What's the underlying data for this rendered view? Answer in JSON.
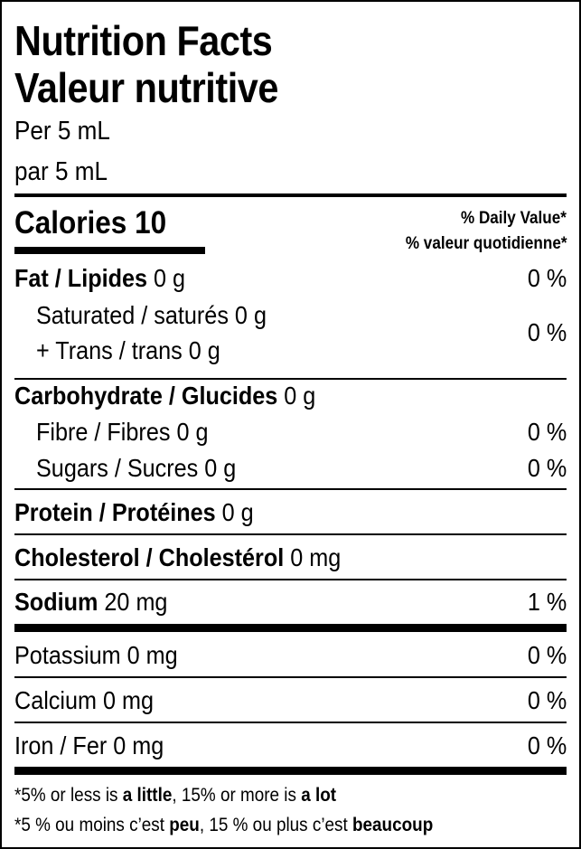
{
  "title_en": "Nutrition Facts",
  "title_fr": "Valeur nutritive",
  "serving_en": "Per 5 mL",
  "serving_fr": "par 5 mL",
  "calories": {
    "label": "Calories",
    "value": "10"
  },
  "dv_header_en": "% Daily Value*",
  "dv_header_fr": "% valeur quotidienne*",
  "rows": {
    "fat": {
      "label": "Fat / Lipides",
      "amount": "0 g",
      "dv": "0 %"
    },
    "saturated": {
      "label": "Saturated / saturés",
      "amount": "0 g"
    },
    "trans": {
      "label": "+ Trans / trans",
      "amount": "0 g"
    },
    "sat_trans_dv": "0 %",
    "carb": {
      "label": "Carbohydrate / Glucides",
      "amount": "0 g"
    },
    "fibre": {
      "label": "Fibre / Fibres",
      "amount": "0 g",
      "dv": "0 %"
    },
    "sugars": {
      "label": "Sugars / Sucres",
      "amount": "0 g",
      "dv": "0 %"
    },
    "protein": {
      "label": "Protein / Protéines",
      "amount": "0 g"
    },
    "cholesterol": {
      "label": "Cholesterol / Cholestérol",
      "amount": "0 mg"
    },
    "sodium": {
      "label": "Sodium",
      "amount": "20 mg",
      "dv": "1 %"
    },
    "potassium": {
      "label": "Potassium",
      "amount": "0 mg",
      "dv": "0 %"
    },
    "calcium": {
      "label": "Calcium",
      "amount": "0 mg",
      "dv": "0 %"
    },
    "iron": {
      "label": "Iron / Fer",
      "amount": "0 mg",
      "dv": "0 %"
    }
  },
  "footnote_en": {
    "p1": "*5% or less is ",
    "b1": "a little",
    ",p2": "",
    "p2": ", 15% or more is ",
    "b2": "a lot"
  },
  "footnote_fr": {
    "p1": "*5 % ou moins c’est ",
    "b1": "peu",
    "p2": ", 15 % ou plus c’est ",
    "b2": "beaucoup"
  }
}
